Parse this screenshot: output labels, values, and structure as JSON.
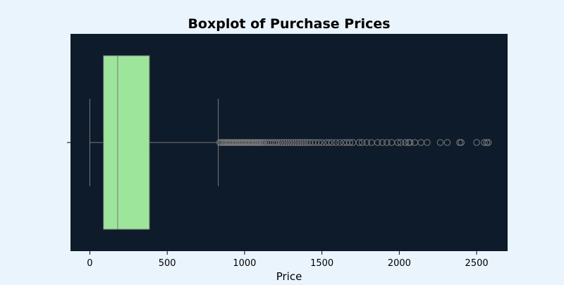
{
  "chart_data": {
    "type": "boxplot",
    "orientation": "horizontal",
    "title": "Boxplot of Purchase Prices",
    "xlabel": "Price",
    "ylabel": "",
    "xlim": [
      -125,
      2700
    ],
    "xticks": [
      0,
      500,
      1000,
      1500,
      2000,
      2500
    ],
    "xtick_labels": [
      "0",
      "500",
      "1000",
      "1500",
      "2000",
      "2500"
    ],
    "grid": false,
    "legend": "none",
    "box": {
      "whisker_low": 0,
      "q1": 88,
      "median": 180,
      "q3": 385,
      "whisker_high": 830
    },
    "outliers": [
      840,
      850,
      858,
      865,
      872,
      880,
      888,
      895,
      903,
      910,
      918,
      925,
      933,
      940,
      948,
      955,
      963,
      970,
      978,
      985,
      993,
      1000,
      1008,
      1015,
      1023,
      1030,
      1038,
      1045,
      1053,
      1060,
      1068,
      1075,
      1083,
      1090,
      1098,
      1105,
      1115,
      1125,
      1135,
      1148,
      1160,
      1172,
      1185,
      1198,
      1210,
      1225,
      1240,
      1255,
      1270,
      1285,
      1300,
      1315,
      1330,
      1345,
      1360,
      1375,
      1390,
      1405,
      1420,
      1440,
      1460,
      1480,
      1500,
      1525,
      1545,
      1565,
      1590,
      1615,
      1640,
      1660,
      1680,
      1700,
      1740,
      1760,
      1790,
      1820,
      1860,
      1890,
      1920,
      1950,
      1990,
      2010,
      2040,
      2060,
      2070,
      2100,
      2140,
      2180,
      2265,
      2310,
      2390,
      2400,
      2500,
      2550,
      2565,
      2575
    ],
    "colors": {
      "page_background": "#eaf4fd",
      "plot_background": "#0e1b2a",
      "box_fill": "#9de59b",
      "line": "#7a7a7a",
      "outlier_edge": "#7a7a7a",
      "text": "#000000"
    }
  }
}
